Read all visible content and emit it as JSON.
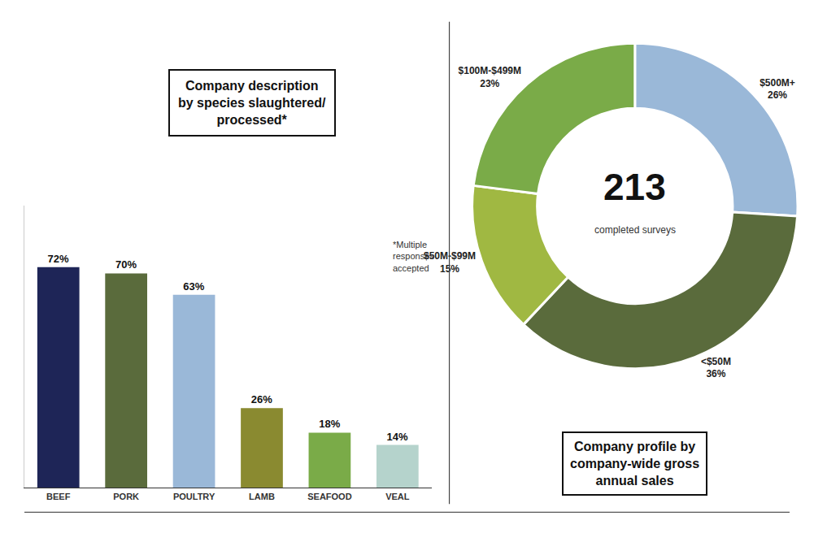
{
  "chart_data": [
    {
      "type": "bar",
      "title": "Company description\nby species slaughtered/\nprocessed*",
      "categories": [
        "BEEF",
        "PORK",
        "POULTRY",
        "LAMB",
        "SEAFOOD",
        "VEAL"
      ],
      "values": [
        72,
        70,
        63,
        26,
        18,
        14
      ],
      "value_labels": [
        "72%",
        "70%",
        "63%",
        "26%",
        "18%",
        "14%"
      ],
      "colors": [
        "#1e2557",
        "#5a6b3c",
        "#9ab8d8",
        "#8a8a30",
        "#7aab48",
        "#b5d3cc"
      ],
      "ylim": [
        0,
        92
      ],
      "data_labels": true,
      "tick_labels": "x",
      "grid": false,
      "annotations": [
        "*Multiple\nresponses\naccepted"
      ]
    },
    {
      "type": "donut",
      "title": "Company profile by\ncompany-wide gross\nannual sales",
      "categories": [
        "$500M+",
        "<$50M",
        "$50M-$99M",
        "$100M-$499M"
      ],
      "values": [
        26,
        36,
        15,
        23
      ],
      "value_labels": [
        "26%",
        "36%",
        "15%",
        "23%"
      ],
      "colors": [
        "#9ab8d8",
        "#5a6b3c",
        "#a0b842",
        "#7aab48"
      ],
      "data_labels": true,
      "annotations": [
        "213",
        "completed surveys"
      ]
    }
  ]
}
